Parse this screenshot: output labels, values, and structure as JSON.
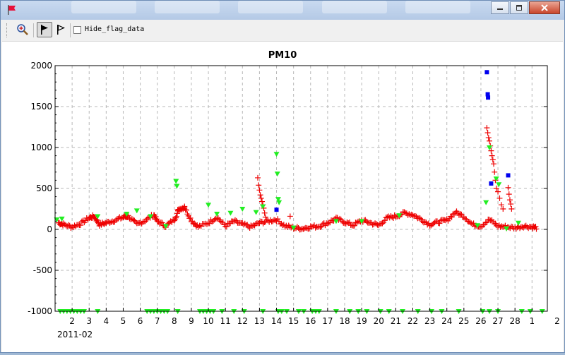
{
  "toolbar": {
    "zoom_icon": "magnifier-zoom-icon",
    "flag_filled_icon": "flag-filled-icon",
    "flag_outline_icon": "flag-outline-icon",
    "hide_flag_label": "Hide_flag_data",
    "hide_flag_checked": false
  },
  "window": {
    "app_icon": "red-flag-icon",
    "buttons": [
      "minimize",
      "maximize",
      "close"
    ]
  },
  "colors": {
    "normal_series": "#ee0000",
    "flagged_green": "#22ee22",
    "flagged_blue": "#0000ee"
  },
  "chart_data": {
    "type": "scatter",
    "title": "PM10",
    "xlabel": "",
    "ylabel": "",
    "x_start_label": "2011-02",
    "x_tick_labels": [
      "2",
      "3",
      "4",
      "5",
      "6",
      "7",
      "8",
      "9",
      "10",
      "11",
      "12",
      "13",
      "14",
      "15",
      "16",
      "17",
      "18",
      "19",
      "20",
      "21",
      "22",
      "23",
      "24",
      "25",
      "26",
      "27",
      "28",
      "1",
      "2"
    ],
    "ylim": [
      -1000,
      2000
    ],
    "y_ticks": [
      -1000,
      -500,
      0,
      500,
      1000,
      1500,
      2000
    ],
    "grid": true,
    "series": [
      {
        "marker": "plus",
        "color": "#ee0000",
        "baseline": [
          [
            1.2,
            80
          ],
          [
            1.5,
            60
          ],
          [
            2,
            30
          ],
          [
            2.5,
            70
          ],
          [
            3,
            140
          ],
          [
            3.3,
            160
          ],
          [
            3.6,
            60
          ],
          [
            4,
            80
          ],
          [
            4.5,
            110
          ],
          [
            5,
            150
          ],
          [
            5.3,
            160
          ],
          [
            5.8,
            60
          ],
          [
            6.3,
            110
          ],
          [
            6.8,
            180
          ],
          [
            7,
            100
          ],
          [
            7.5,
            40
          ],
          [
            8,
            120
          ],
          [
            8.3,
            250
          ],
          [
            8.6,
            270
          ],
          [
            9,
            110
          ],
          [
            9.4,
            30
          ],
          [
            10,
            80
          ],
          [
            10.5,
            150
          ],
          [
            11,
            40
          ],
          [
            11.5,
            100
          ],
          [
            12,
            60
          ],
          [
            12.5,
            30
          ],
          [
            13,
            80
          ],
          [
            13.5,
            100
          ],
          [
            14,
            120
          ],
          [
            14.5,
            40
          ],
          [
            15,
            20
          ],
          [
            15.5,
            10
          ],
          [
            16,
            30
          ],
          [
            16.5,
            40
          ],
          [
            17,
            80
          ],
          [
            17.5,
            130
          ],
          [
            18,
            90
          ],
          [
            18.5,
            50
          ],
          [
            19,
            110
          ],
          [
            19.5,
            80
          ],
          [
            20,
            50
          ],
          [
            20.5,
            140
          ],
          [
            21,
            160
          ],
          [
            21.5,
            200
          ],
          [
            22,
            180
          ],
          [
            22.5,
            120
          ],
          [
            23,
            60
          ],
          [
            23.5,
            90
          ],
          [
            24,
            110
          ],
          [
            24.5,
            210
          ],
          [
            25,
            160
          ],
          [
            25.5,
            60
          ],
          [
            26,
            40
          ],
          [
            26.5,
            120
          ],
          [
            27,
            40
          ],
          [
            27.5,
            30
          ],
          [
            28,
            20
          ],
          [
            28.5,
            40
          ],
          [
            29,
            30
          ],
          [
            29.3,
            20
          ]
        ],
        "spikes": [
          [
            8.2,
            240
          ],
          [
            8.6,
            280
          ],
          [
            12.9,
            630
          ],
          [
            12.95,
            540
          ],
          [
            13,
            480
          ],
          [
            13.05,
            420
          ],
          [
            13.1,
            380
          ],
          [
            13.15,
            340
          ],
          [
            13.2,
            300
          ],
          [
            13.25,
            260
          ],
          [
            13.3,
            200
          ],
          [
            13.35,
            150
          ],
          [
            14.8,
            160
          ],
          [
            26.35,
            1240
          ],
          [
            26.4,
            1180
          ],
          [
            26.45,
            1120
          ],
          [
            26.5,
            1080
          ],
          [
            26.55,
            1020
          ],
          [
            26.6,
            960
          ],
          [
            26.65,
            900
          ],
          [
            26.7,
            850
          ],
          [
            26.75,
            800
          ],
          [
            26.8,
            700
          ],
          [
            26.85,
            600
          ],
          [
            26.9,
            500
          ],
          [
            27,
            460
          ],
          [
            27.1,
            380
          ],
          [
            27.2,
            300
          ],
          [
            27.3,
            250
          ],
          [
            27.6,
            510
          ],
          [
            27.65,
            430
          ],
          [
            27.7,
            360
          ],
          [
            27.75,
            310
          ],
          [
            27.8,
            250
          ]
        ]
      },
      {
        "marker": "triangle-down",
        "color": "#22ee22",
        "points": [
          [
            1.1,
            120
          ],
          [
            1.4,
            130
          ],
          [
            3.5,
            160
          ],
          [
            5.2,
            190
          ],
          [
            5.8,
            230
          ],
          [
            6.6,
            160
          ],
          [
            7.5,
            40
          ],
          [
            8.1,
            590
          ],
          [
            8.15,
            530
          ],
          [
            10,
            300
          ],
          [
            10.5,
            190
          ],
          [
            11.3,
            200
          ],
          [
            12,
            250
          ],
          [
            12.8,
            210
          ],
          [
            13.2,
            280
          ],
          [
            14,
            920
          ],
          [
            14.05,
            680
          ],
          [
            14.1,
            370
          ],
          [
            14.15,
            330
          ],
          [
            15,
            20
          ],
          [
            17.5,
            100
          ],
          [
            19,
            100
          ],
          [
            21.2,
            170
          ],
          [
            25.8,
            50
          ],
          [
            26.3,
            330
          ],
          [
            26.5,
            1000
          ],
          [
            26.9,
            620
          ],
          [
            27.05,
            550
          ],
          [
            27.5,
            10
          ],
          [
            28.2,
            80
          ]
        ],
        "floor_points_x": [
          1.3,
          1.5,
          1.7,
          1.9,
          2.1,
          2.3,
          2.5,
          2.7,
          3.5,
          6.4,
          6.6,
          6.8,
          7.0,
          7.2,
          7.4,
          7.6,
          8.2,
          9.5,
          9.7,
          9.9,
          10.1,
          10.3,
          10.8,
          11.5,
          12.1,
          13.2,
          14.1,
          14.3,
          14.6,
          15.3,
          15.6,
          16.1,
          16.3,
          16.5,
          17.5,
          18.3,
          18.8,
          19.3,
          20.1,
          20.6,
          21.4,
          22.3,
          23.1,
          23.7,
          24.7,
          26.1,
          26.5,
          27.0,
          28.4,
          28.9,
          29.6
        ]
      },
      {
        "marker": "square",
        "color": "#0000ee",
        "points": [
          [
            14,
            240
          ],
          [
            26.35,
            1920
          ],
          [
            26.4,
            1650
          ],
          [
            26.42,
            1610
          ],
          [
            26.6,
            560
          ],
          [
            27.6,
            660
          ]
        ]
      }
    ]
  }
}
